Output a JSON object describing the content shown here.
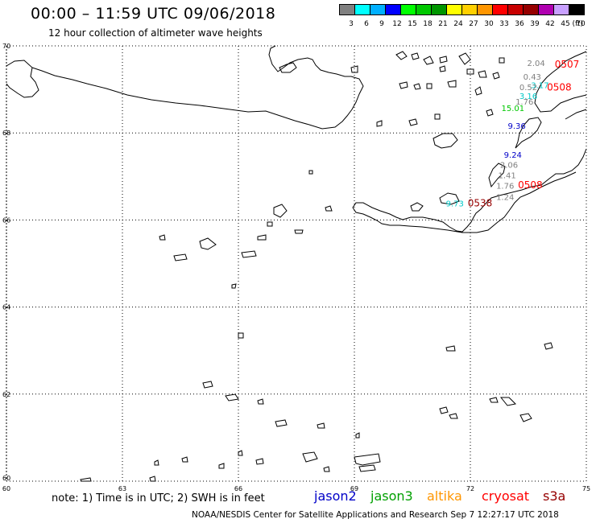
{
  "header": {
    "title": "00:00 – 11:59 UTC 09/06/2018",
    "subtitle": "12 hour collection of altimeter wave heights"
  },
  "scale": {
    "unit_label": "(ft)",
    "bins": [
      {
        "label": "3",
        "color": "#808080"
      },
      {
        "label": "6",
        "color": "#00ffff"
      },
      {
        "label": "9",
        "color": "#00b0ff"
      },
      {
        "label": "12",
        "color": "#0000ff"
      },
      {
        "label": "15",
        "color": "#00ff00"
      },
      {
        "label": "18",
        "color": "#00c800"
      },
      {
        "label": "21",
        "color": "#009600"
      },
      {
        "label": "24",
        "color": "#ffff00"
      },
      {
        "label": "27",
        "color": "#ffd000"
      },
      {
        "label": "30",
        "color": "#ff9600"
      },
      {
        "label": "33",
        "color": "#ff0000"
      },
      {
        "label": "36",
        "color": "#c80000"
      },
      {
        "label": "39",
        "color": "#960000"
      },
      {
        "label": "42",
        "color": "#b000b0"
      },
      {
        "label": "45",
        "color": "#c8a0ff"
      },
      {
        "label": "70",
        "color": "#000000"
      }
    ]
  },
  "map": {
    "lon_ticks": [
      "60",
      "63",
      "66",
      "69",
      "72",
      "75"
    ],
    "lat_ticks": [
      "60",
      "62",
      "64",
      "66",
      "68",
      "70"
    ],
    "lon_range": [
      60,
      75
    ],
    "lat_range": [
      60,
      70
    ],
    "grid": "dotted"
  },
  "observations": [
    {
      "text": "2.04",
      "lon": 73.7,
      "lat": 69.54,
      "color": "#808080"
    },
    {
      "text": "0507",
      "lon": 74.5,
      "lat": 69.5,
      "color": "#ff0000",
      "label": true
    },
    {
      "text": "0.43",
      "lon": 73.6,
      "lat": 69.22,
      "color": "#808080"
    },
    {
      "text": "3.17",
      "lon": 73.8,
      "lat": 69.03,
      "color": "#00c8c8"
    },
    {
      "text": "0.52",
      "lon": 73.5,
      "lat": 68.98,
      "color": "#808080"
    },
    {
      "text": "0508",
      "lon": 74.3,
      "lat": 68.97,
      "color": "#ff0000",
      "label": true
    },
    {
      "text": "3.16",
      "lon": 73.5,
      "lat": 68.78,
      "color": "#00c8c8"
    },
    {
      "text": "1.76",
      "lon": 73.4,
      "lat": 68.65,
      "color": "#808080"
    },
    {
      "text": "15.01",
      "lon": 73.1,
      "lat": 68.5,
      "color": "#00c800"
    },
    {
      "text": "9.36",
      "lon": 73.2,
      "lat": 68.1,
      "color": "#0000c8"
    },
    {
      "text": "9.24",
      "lon": 73.1,
      "lat": 67.43,
      "color": "#0000c8"
    },
    {
      "text": "2.06",
      "lon": 73.0,
      "lat": 67.2,
      "color": "#808080"
    },
    {
      "text": "1.41",
      "lon": 72.95,
      "lat": 66.96,
      "color": "#808080"
    },
    {
      "text": "1.76",
      "lon": 72.9,
      "lat": 66.72,
      "color": "#808080"
    },
    {
      "text": "0508",
      "lon": 73.55,
      "lat": 66.73,
      "color": "#ff0000",
      "label": true
    },
    {
      "text": "1.24",
      "lon": 72.9,
      "lat": 66.46,
      "color": "#808080"
    },
    {
      "text": "9.73",
      "lon": 71.6,
      "lat": 66.31,
      "color": "#00c8c8"
    },
    {
      "text": "0538",
      "lon": 72.25,
      "lat": 66.31,
      "color": "#960000",
      "label": true
    }
  ],
  "footer": {
    "note": "note: 1) Time is in UTC; 2) SWH is in feet",
    "satellites": [
      {
        "name": "jason2",
        "color": "#0000c8"
      },
      {
        "name": "jason3",
        "color": "#00a000"
      },
      {
        "name": "altika",
        "color": "#ff9600"
      },
      {
        "name": "cryosat",
        "color": "#ff0000"
      },
      {
        "name": "s3a",
        "color": "#960000"
      }
    ],
    "credit": "NOAA/NESDIS Center for Satellite Applications and Research    Sep  7 12:27:17 UTC 2018"
  }
}
